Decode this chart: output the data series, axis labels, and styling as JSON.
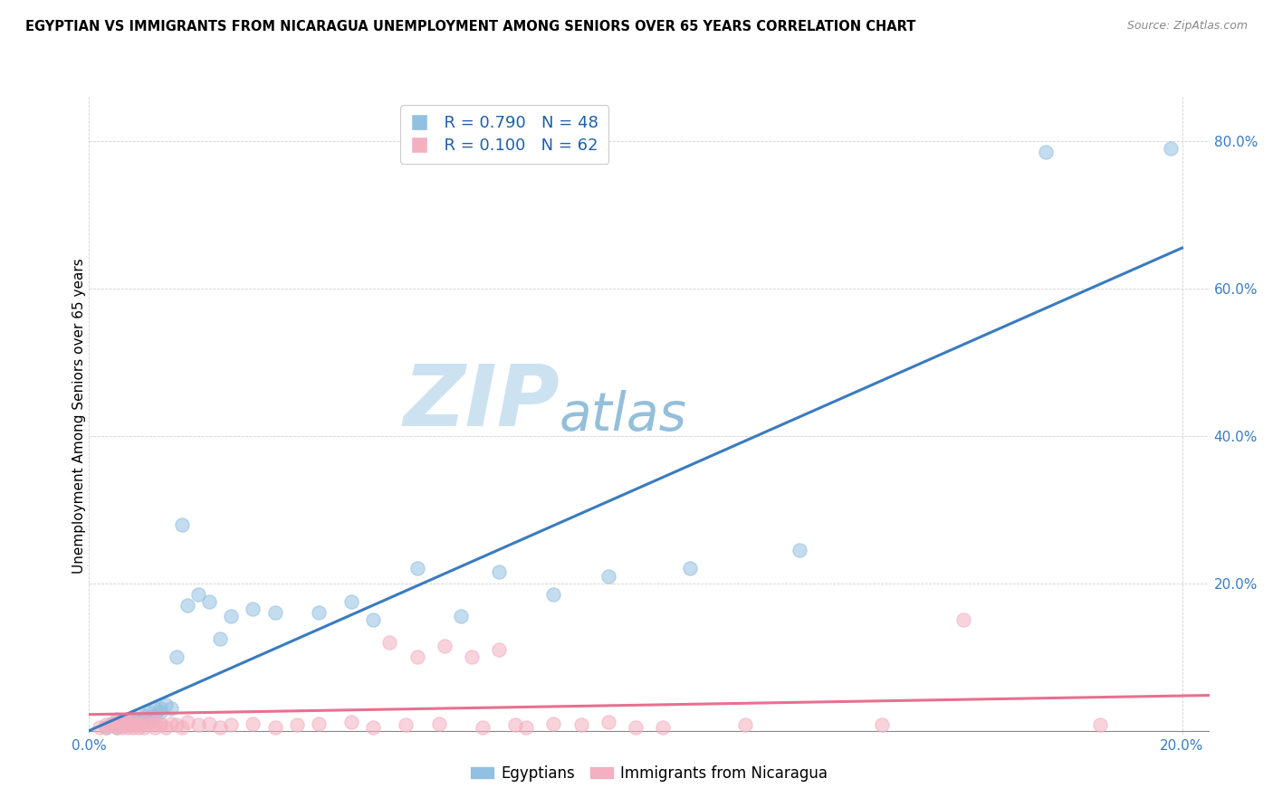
{
  "title": "EGYPTIAN VS IMMIGRANTS FROM NICARAGUA UNEMPLOYMENT AMONG SENIORS OVER 65 YEARS CORRELATION CHART",
  "source": "Source: ZipAtlas.com",
  "ylabel": "Unemployment Among Seniors over 65 years",
  "ytick_vals": [
    0.0,
    0.2,
    0.4,
    0.6,
    0.8
  ],
  "ytick_labels": [
    "",
    "20.0%",
    "40.0%",
    "60.0%",
    "80.0%"
  ],
  "xtick_vals": [
    0.0,
    0.2
  ],
  "xtick_labels": [
    "0.0%",
    "20.0%"
  ],
  "xlim": [
    0.0,
    0.205
  ],
  "ylim": [
    -0.005,
    0.86
  ],
  "legend_r1": "R = 0.790",
  "legend_n1": "N = 48",
  "legend_r2": "R = 0.100",
  "legend_n2": "N = 62",
  "legend_label1": "Egyptians",
  "legend_label2": "Immigrants from Nicaragua",
  "color_blue": "#92c0e0",
  "color_pink": "#f4afc0",
  "color_blue_line": "#3a7bbf",
  "color_pink_line": "#e87090",
  "watermark_zip": "ZIP",
  "watermark_atlas": "atlas",
  "eg_x": [
    0.003,
    0.004,
    0.005,
    0.005,
    0.005,
    0.006,
    0.006,
    0.007,
    0.007,
    0.007,
    0.008,
    0.008,
    0.008,
    0.009,
    0.009,
    0.009,
    0.01,
    0.01,
    0.01,
    0.011,
    0.011,
    0.012,
    0.012,
    0.013,
    0.013,
    0.014,
    0.015,
    0.016,
    0.017,
    0.018,
    0.02,
    0.022,
    0.024,
    0.026,
    0.03,
    0.034,
    0.042,
    0.048,
    0.052,
    0.06,
    0.068,
    0.075,
    0.085,
    0.095,
    0.11,
    0.13,
    0.175,
    0.198
  ],
  "eg_y": [
    0.005,
    0.008,
    0.01,
    0.005,
    0.015,
    0.008,
    0.012,
    0.01,
    0.015,
    0.008,
    0.012,
    0.01,
    0.018,
    0.012,
    0.015,
    0.01,
    0.018,
    0.012,
    0.02,
    0.015,
    0.025,
    0.02,
    0.03,
    0.025,
    0.03,
    0.035,
    0.03,
    0.1,
    0.28,
    0.17,
    0.185,
    0.175,
    0.125,
    0.155,
    0.165,
    0.16,
    0.16,
    0.175,
    0.15,
    0.22,
    0.155,
    0.215,
    0.185,
    0.21,
    0.22,
    0.245,
    0.785,
    0.79
  ],
  "nic_x": [
    0.002,
    0.003,
    0.003,
    0.004,
    0.004,
    0.005,
    0.005,
    0.005,
    0.006,
    0.006,
    0.006,
    0.007,
    0.007,
    0.007,
    0.008,
    0.008,
    0.008,
    0.009,
    0.009,
    0.009,
    0.01,
    0.01,
    0.011,
    0.011,
    0.012,
    0.012,
    0.013,
    0.013,
    0.014,
    0.015,
    0.016,
    0.017,
    0.018,
    0.02,
    0.022,
    0.024,
    0.026,
    0.03,
    0.034,
    0.038,
    0.042,
    0.048,
    0.052,
    0.058,
    0.064,
    0.072,
    0.078,
    0.085,
    0.095,
    0.105,
    0.055,
    0.06,
    0.065,
    0.07,
    0.075,
    0.08,
    0.09,
    0.1,
    0.12,
    0.145,
    0.16,
    0.185
  ],
  "nic_y": [
    0.005,
    0.008,
    0.005,
    0.01,
    0.008,
    0.005,
    0.012,
    0.008,
    0.01,
    0.005,
    0.008,
    0.012,
    0.005,
    0.01,
    0.008,
    0.012,
    0.005,
    0.01,
    0.008,
    0.005,
    0.012,
    0.005,
    0.01,
    0.008,
    0.012,
    0.005,
    0.01,
    0.008,
    0.005,
    0.01,
    0.008,
    0.005,
    0.012,
    0.008,
    0.01,
    0.005,
    0.008,
    0.01,
    0.005,
    0.008,
    0.01,
    0.012,
    0.005,
    0.008,
    0.01,
    0.005,
    0.008,
    0.01,
    0.012,
    0.005,
    0.12,
    0.1,
    0.115,
    0.1,
    0.11,
    0.005,
    0.008,
    0.005,
    0.008,
    0.008,
    0.15,
    0.008
  ],
  "blue_line_x": [
    0.0,
    0.2
  ],
  "blue_line_y": [
    0.0,
    0.655
  ],
  "pink_line_x": [
    0.0,
    0.205
  ],
  "pink_line_y": [
    0.022,
    0.048
  ]
}
